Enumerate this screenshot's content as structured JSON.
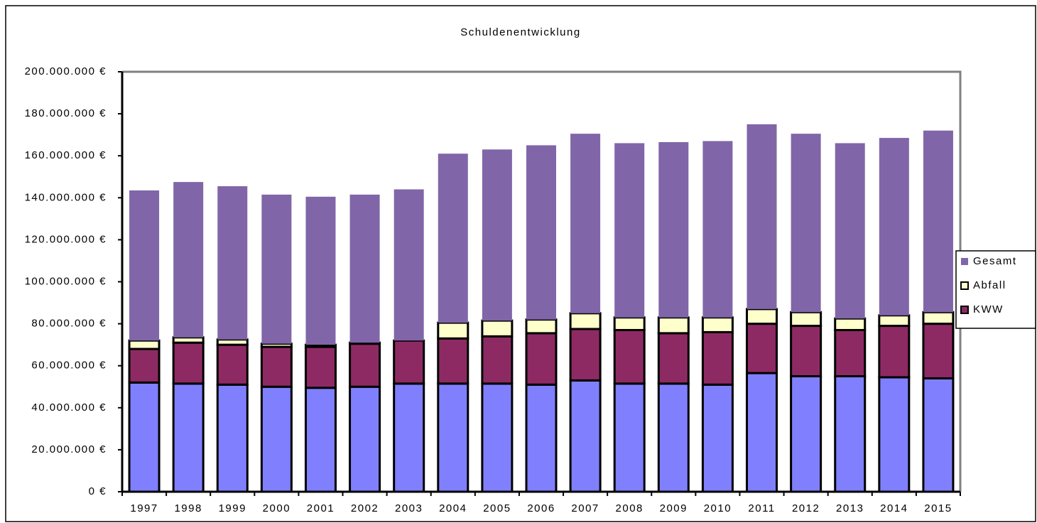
{
  "chart_data": {
    "type": "stacked_bar",
    "title": "Schuldenentwicklung",
    "categories": [
      "1997",
      "1998",
      "1999",
      "2000",
      "2001",
      "2002",
      "2003",
      "2004",
      "2005",
      "2006",
      "2007",
      "2008",
      "2009",
      "2010",
      "2011",
      "2012",
      "2013",
      "2014",
      "2015"
    ],
    "series": [
      {
        "color": "#8080ff",
        "values": [
          52000000,
          51500000,
          51000000,
          50000000,
          49500000,
          50000000,
          51500000,
          51500000,
          51500000,
          51000000,
          53000000,
          51500000,
          51500000,
          51000000,
          56500000,
          55000000,
          55000000,
          54500000,
          54000000
        ]
      },
      {
        "name": "KWW",
        "color": "#8e2a63",
        "values": [
          16000000,
          19500000,
          19000000,
          19000000,
          19500000,
          20500000,
          20500000,
          21500000,
          22500000,
          24500000,
          24500000,
          25500000,
          24000000,
          25000000,
          23500000,
          24000000,
          22000000,
          24500000,
          26000000
        ]
      },
      {
        "name": "Abfall",
        "color": "#ffffcc",
        "values": [
          4000000,
          2500000,
          2500000,
          1500000,
          1000000,
          500000,
          0,
          7500000,
          7500000,
          6500000,
          7500000,
          6000000,
          7500000,
          7000000,
          7000000,
          6500000,
          5500000,
          5000000,
          5500000
        ]
      },
      {
        "name": "Gesamt",
        "color": "#8066a8",
        "values": [
          71500000,
          74000000,
          73000000,
          71000000,
          70500000,
          70500000,
          72000000,
          80500000,
          81500000,
          83000000,
          85500000,
          83000000,
          83500000,
          84000000,
          88000000,
          85000000,
          83500000,
          84500000,
          86500000
        ]
      }
    ],
    "ylim": [
      0,
      200000000
    ],
    "yticks": [
      {
        "value": 0,
        "label": "0 €"
      },
      {
        "value": 20000000,
        "label": "20.000.000 €"
      },
      {
        "value": 40000000,
        "label": "40.000.000 €"
      },
      {
        "value": 60000000,
        "label": "60.000.000 €"
      },
      {
        "value": 80000000,
        "label": "80.000.000 €"
      },
      {
        "value": 100000000,
        "label": "100.000.000 €"
      },
      {
        "value": 120000000,
        "label": "120.000.000 €"
      },
      {
        "value": 140000000,
        "label": "140.000.000 €"
      },
      {
        "value": 160000000,
        "label": "160.000.000 €"
      },
      {
        "value": 180000000,
        "label": "180.000.000 €"
      },
      {
        "value": 200000000,
        "label": "200.000.000 €"
      }
    ],
    "legend": "right"
  }
}
